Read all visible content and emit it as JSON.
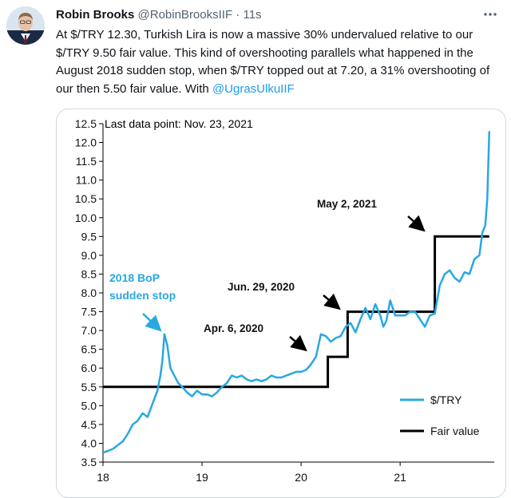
{
  "tweet": {
    "author_name": "Robin Brooks",
    "handle": "@RobinBrooksIIF",
    "separator": "·",
    "time": "11s",
    "more_icon": "more-horizontal-icon",
    "text_before": "At $/TRY 12.30, Turkish Lira is now a massive 30% undervalued relative to our $/TRY 9.50 fair value. This kind of overshooting parallels what happened in the August 2018 sudden stop, when $/TRY topped out at 7.20, a 31% overshooting of our then 5.50 fair value. With ",
    "mention": "@UgrasUlkuIIF"
  },
  "colors": {
    "accent": "#1d9bf0",
    "series": "#29a8e0",
    "fair": "#000000"
  },
  "chart_data": {
    "type": "line",
    "title": "Last data point: Nov. 23, 2021",
    "ylim": [
      3.5,
      12.5
    ],
    "y_ticks": [
      "12.5",
      "12.0",
      "11.5",
      "11.0",
      "10.5",
      "10.0",
      "9.5",
      "9.0",
      "8.5",
      "8.0",
      "7.5",
      "7.0",
      "6.5",
      "6.0",
      "5.5",
      "5.0",
      "4.5",
      "4.0",
      "3.5"
    ],
    "x_ticks": [
      "18",
      "19",
      "20",
      "21"
    ],
    "xlim": [
      2018.0,
      2021.95
    ],
    "series": [
      {
        "name": "$/TRY",
        "x": [
          2018.0,
          2018.05,
          2018.1,
          2018.15,
          2018.2,
          2018.25,
          2018.3,
          2018.35,
          2018.4,
          2018.45,
          2018.5,
          2018.55,
          2018.58,
          2018.6,
          2018.62,
          2018.65,
          2018.68,
          2018.72,
          2018.76,
          2018.8,
          2018.85,
          2018.9,
          2018.95,
          2019.0,
          2019.05,
          2019.1,
          2019.15,
          2019.2,
          2019.25,
          2019.3,
          2019.35,
          2019.4,
          2019.45,
          2019.5,
          2019.55,
          2019.6,
          2019.65,
          2019.7,
          2019.75,
          2019.8,
          2019.85,
          2019.9,
          2019.95,
          2020.0,
          2020.05,
          2020.1,
          2020.15,
          2020.2,
          2020.25,
          2020.3,
          2020.35,
          2020.4,
          2020.45,
          2020.5,
          2020.55,
          2020.6,
          2020.65,
          2020.7,
          2020.75,
          2020.8,
          2020.83,
          2020.86,
          2020.9,
          2020.95,
          2021.0,
          2021.05,
          2021.1,
          2021.15,
          2021.2,
          2021.25,
          2021.3,
          2021.35,
          2021.4,
          2021.45,
          2021.5,
          2021.55,
          2021.6,
          2021.65,
          2021.7,
          2021.75,
          2021.8,
          2021.83,
          2021.86,
          2021.88,
          2021.9
        ],
        "values": [
          3.75,
          3.8,
          3.85,
          3.95,
          4.05,
          4.25,
          4.5,
          4.6,
          4.8,
          4.7,
          5.05,
          5.4,
          5.8,
          6.2,
          6.9,
          6.6,
          6.0,
          5.8,
          5.6,
          5.5,
          5.35,
          5.25,
          5.4,
          5.3,
          5.3,
          5.25,
          5.35,
          5.5,
          5.6,
          5.8,
          5.75,
          5.8,
          5.7,
          5.65,
          5.7,
          5.65,
          5.7,
          5.8,
          5.75,
          5.75,
          5.8,
          5.85,
          5.9,
          5.9,
          5.95,
          6.1,
          6.3,
          6.9,
          6.85,
          6.7,
          6.8,
          6.85,
          7.1,
          7.2,
          6.95,
          7.3,
          7.6,
          7.3,
          7.7,
          7.4,
          7.1,
          7.25,
          7.8,
          7.4,
          7.4,
          7.4,
          7.5,
          7.5,
          7.3,
          7.1,
          7.4,
          7.45,
          8.2,
          8.5,
          8.6,
          8.4,
          8.3,
          8.55,
          8.5,
          8.9,
          9.0,
          9.6,
          9.8,
          10.5,
          12.3
        ]
      },
      {
        "name": "Fair value",
        "x": [
          2018.0,
          2020.27,
          2020.27,
          2020.47,
          2020.47,
          2021.35,
          2021.35,
          2021.9
        ],
        "values": [
          5.5,
          5.5,
          6.3,
          6.3,
          7.5,
          7.5,
          9.5,
          9.5
        ]
      }
    ],
    "annotations": {
      "bop_line1": "2018 BoP",
      "bop_line2": "sudden stop",
      "apr": "Apr. 6, 2020",
      "jun": "Jun. 29, 2020",
      "may": "May 2, 2021"
    },
    "legend": {
      "placement": "bottom-right",
      "items": [
        "$/TRY",
        "Fair value"
      ]
    }
  }
}
